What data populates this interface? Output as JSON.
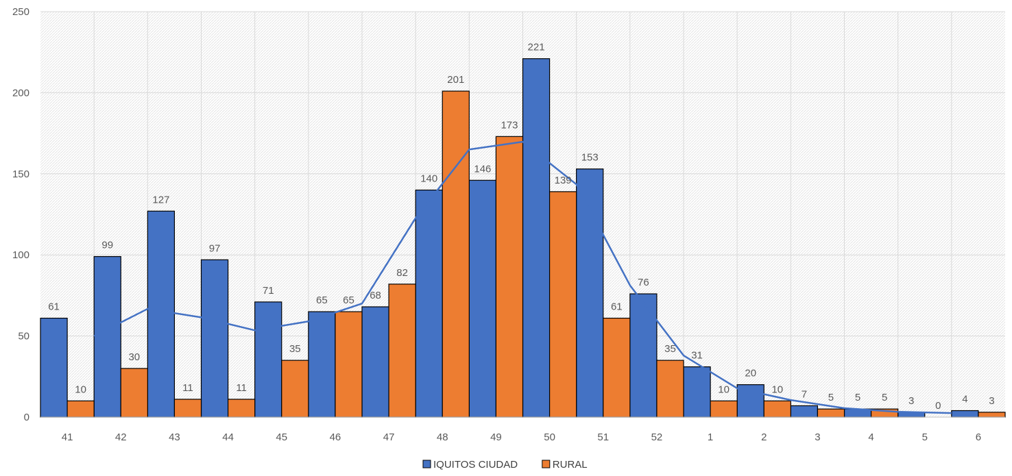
{
  "chart_data": {
    "type": "bar",
    "title": "",
    "xlabel": "",
    "ylabel": "",
    "categories": [
      "41",
      "42",
      "43",
      "44",
      "45",
      "46",
      "47",
      "48",
      "49",
      "50",
      "51",
      "52",
      "1",
      "2",
      "3",
      "4",
      "5",
      "6"
    ],
    "ylim": [
      0,
      250
    ],
    "yticks": [
      0,
      50,
      100,
      150,
      200,
      250
    ],
    "grid": true,
    "legend_position": "bottom",
    "series": [
      {
        "name": "IQUITOS CIUDAD",
        "color": "#4472C4",
        "values": [
          61,
          99,
          127,
          97,
          71,
          65,
          68,
          140,
          146,
          221,
          153,
          76,
          31,
          20,
          7,
          5,
          3,
          4
        ]
      },
      {
        "name": "RURAL",
        "color": "#ED7D31",
        "values": [
          10,
          30,
          11,
          11,
          35,
          65,
          82,
          201,
          173,
          139,
          61,
          35,
          10,
          10,
          5,
          5,
          0,
          3
        ]
      }
    ],
    "trendline": {
      "type": "moving average",
      "color": "#4472C4"
    }
  }
}
